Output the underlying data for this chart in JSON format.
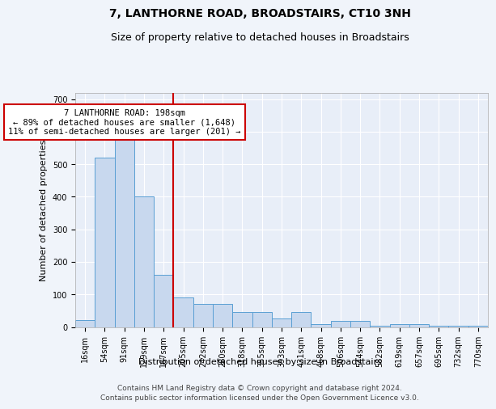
{
  "title": "7, LANTHORNE ROAD, BROADSTAIRS, CT10 3NH",
  "subtitle": "Size of property relative to detached houses in Broadstairs",
  "xlabel": "Distribution of detached houses by size in Broadstairs",
  "ylabel": "Number of detached properties",
  "bin_labels": [
    "16sqm",
    "54sqm",
    "91sqm",
    "129sqm",
    "167sqm",
    "205sqm",
    "242sqm",
    "280sqm",
    "318sqm",
    "355sqm",
    "393sqm",
    "431sqm",
    "468sqm",
    "506sqm",
    "544sqm",
    "582sqm",
    "619sqm",
    "657sqm",
    "695sqm",
    "732sqm",
    "770sqm"
  ],
  "bar_heights": [
    20,
    520,
    600,
    400,
    160,
    90,
    70,
    70,
    45,
    45,
    25,
    45,
    8,
    18,
    18,
    3,
    8,
    8,
    3,
    3,
    3
  ],
  "bar_color": "#c8d8ee",
  "bar_edge_color": "#5a9fd4",
  "vline_x": 4.5,
  "vline_color": "#cc0000",
  "annotation_text": "7 LANTHORNE ROAD: 198sqm\n← 89% of detached houses are smaller (1,648)\n11% of semi-detached houses are larger (201) →",
  "annotation_box_color": "#ffffff",
  "annotation_box_edge": "#cc0000",
  "ylim": [
    0,
    720
  ],
  "yticks": [
    0,
    100,
    200,
    300,
    400,
    500,
    600,
    700
  ],
  "footer_line1": "Contains HM Land Registry data © Crown copyright and database right 2024.",
  "footer_line2": "Contains public sector information licensed under the Open Government Licence v3.0.",
  "bg_color": "#f0f4fa",
  "plot_bg_color": "#e8eef8",
  "grid_color": "#ffffff",
  "title_fontsize": 10,
  "subtitle_fontsize": 9,
  "axis_label_fontsize": 8,
  "tick_fontsize": 7,
  "annotation_fontsize": 7.5,
  "footer_fontsize": 6.5
}
